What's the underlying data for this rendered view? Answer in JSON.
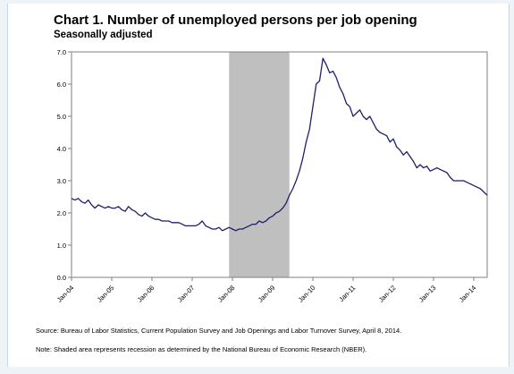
{
  "chart_data": {
    "type": "line",
    "title": "Chart 1. Number of unemployed persons per job opening",
    "subtitle": "Seasonally adjusted",
    "ylim": [
      0.0,
      7.0
    ],
    "yticks": [
      "0.0",
      "1.0",
      "2.0",
      "3.0",
      "4.0",
      "5.0",
      "6.0",
      "7.0"
    ],
    "xticks": [
      "Jan-04",
      "Jan-05",
      "Jan-06",
      "Jan-07",
      "Jan-08",
      "Jan-09",
      "Jan-10",
      "Jan-11",
      "Jan-12",
      "Jan-13",
      "Jan-14"
    ],
    "grid": false,
    "recession": {
      "start": "Dec-07",
      "end": "Jun-09",
      "color": "#bfbfbf"
    },
    "line_color": "#1f1f6b",
    "series": [
      {
        "x_start": "Dec-2000",
        "values": [
          2.45,
          2.4,
          2.45,
          2.35,
          2.3,
          2.4,
          2.25,
          2.15,
          2.25,
          2.2,
          2.15,
          2.2,
          2.15,
          2.15,
          2.2,
          2.1,
          2.05,
          2.2,
          2.1,
          2.05,
          1.95,
          1.9,
          2.0,
          1.9,
          1.85,
          1.8,
          1.8,
          1.75,
          1.75,
          1.75,
          1.7,
          1.7,
          1.7,
          1.65,
          1.6,
          1.6,
          1.6,
          1.6,
          1.65,
          1.75,
          1.6,
          1.55,
          1.5,
          1.5,
          1.55,
          1.45,
          1.5,
          1.55,
          1.5,
          1.45,
          1.5,
          1.5,
          1.55,
          1.6,
          1.65,
          1.65,
          1.75,
          1.7,
          1.75,
          1.85,
          1.9,
          2.0,
          2.05,
          2.15,
          2.3,
          2.55,
          2.75,
          3.0,
          3.3,
          3.7,
          4.2,
          4.6,
          5.3,
          6.0,
          6.1,
          6.8,
          6.6,
          6.35,
          6.4,
          6.2,
          5.9,
          5.7,
          5.4,
          5.3,
          5.0,
          5.1,
          5.2,
          5.0,
          4.9,
          5.0,
          4.8,
          4.6,
          4.5,
          4.45,
          4.4,
          4.2,
          4.3,
          4.05,
          3.95,
          3.8,
          3.9,
          3.75,
          3.6,
          3.4,
          3.5,
          3.4,
          3.45,
          3.3,
          3.35,
          3.4,
          3.35,
          3.3,
          3.25,
          3.1,
          3.0,
          3.0,
          3.0,
          3.0,
          2.95,
          2.9,
          2.85,
          2.8,
          2.75,
          2.65,
          2.55
        ]
      }
    ]
  },
  "notes": {
    "source": "Source: Bureau of Labor Statistics, Current Population Survey and Job Openings and Labor Turnover Survey, April 8, 2014.",
    "shading": "Note: Shaded area represents recession as determined by the National Bureau of Economic Research (NBER)."
  }
}
